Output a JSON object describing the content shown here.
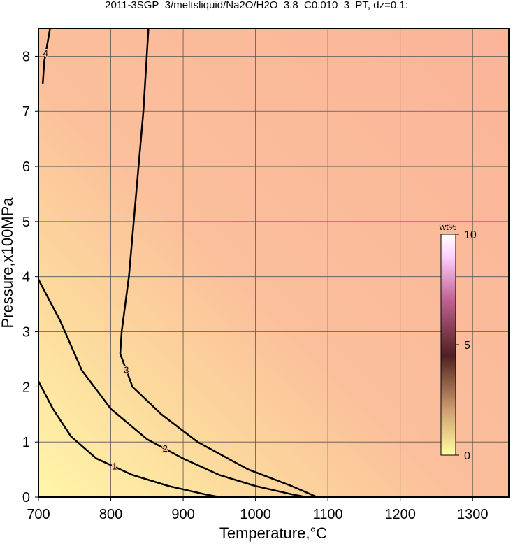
{
  "chart_data": {
    "type": "contour",
    "title": "2011-3SGP_3/meltsliquid/Na2O/H2O_3.8_C0.010_3_PT, dz=0.1:",
    "xlabel": "Temperature,°C",
    "ylabel": "Pressure,x100MPa",
    "xlim": [
      700,
      1350
    ],
    "ylim": [
      0,
      8.5
    ],
    "xticks": [
      700,
      800,
      900,
      1000,
      1100,
      1200,
      1300
    ],
    "yticks": [
      0,
      1,
      2,
      3,
      4,
      5,
      6,
      7,
      8
    ],
    "grid": true,
    "contours": [
      {
        "level": 1,
        "bold": true,
        "x": [
          700,
          720,
          745,
          780,
          830,
          880,
          930,
          950
        ],
        "y": [
          2.1,
          1.6,
          1.1,
          0.7,
          0.4,
          0.2,
          0.05,
          0
        ]
      },
      {
        "level": 2,
        "bold": true,
        "x": [
          700,
          730,
          760,
          800,
          850,
          900,
          950,
          1000,
          1050,
          1070
        ],
        "y": [
          3.95,
          3.2,
          2.3,
          1.6,
          1.05,
          0.7,
          0.4,
          0.2,
          0.05,
          0
        ]
      },
      {
        "level": 3,
        "bold": true,
        "x": [
          852,
          845,
          835,
          825,
          815,
          813,
          830,
          870,
          920,
          990,
          1050,
          1085
        ],
        "y": [
          8.5,
          7,
          5.5,
          4,
          3,
          2.6,
          2.0,
          1.5,
          1.0,
          0.5,
          0.2,
          0
        ]
      },
      {
        "level": 4,
        "bold": true,
        "x": [
          716,
          712,
          708,
          706
        ],
        "y": [
          8.5,
          8.2,
          7.9,
          7.5
        ]
      }
    ],
    "colorbar": {
      "label": "wt%",
      "lim": [
        0,
        10
      ],
      "ticks": [
        0,
        5,
        10
      ]
    }
  }
}
